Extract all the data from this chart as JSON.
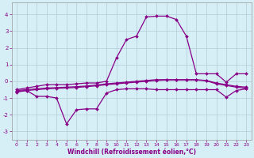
{
  "xlabel": "Windchill (Refroidissement éolien,°C)",
  "bg_color": "#d6eef5",
  "grid_color": "#b0ccd8",
  "line_color": "#880088",
  "xlim": [
    -0.5,
    23.5
  ],
  "ylim": [
    -3.5,
    4.7
  ],
  "yticks": [
    -3,
    -2,
    -1,
    0,
    1,
    2,
    3,
    4
  ],
  "xticks": [
    0,
    1,
    2,
    3,
    4,
    5,
    6,
    7,
    8,
    9,
    10,
    11,
    12,
    13,
    14,
    15,
    16,
    17,
    18,
    19,
    20,
    21,
    22,
    23
  ],
  "line_high_x": [
    0,
    1,
    2,
    3,
    4,
    5,
    6,
    7,
    8,
    9,
    10,
    11,
    12,
    13,
    14,
    15,
    16,
    17,
    18,
    19,
    20,
    21,
    22,
    23
  ],
  "line_high_y": [
    -0.5,
    -0.4,
    -0.3,
    -0.2,
    -0.2,
    -0.2,
    -0.15,
    -0.1,
    -0.1,
    0.0,
    1.4,
    2.5,
    2.7,
    3.85,
    3.9,
    3.9,
    3.7,
    2.7,
    0.45,
    0.45,
    0.45,
    -0.05,
    0.45,
    0.45
  ],
  "line_mid1_x": [
    0,
    1,
    2,
    3,
    4,
    5,
    6,
    7,
    8,
    9,
    10,
    11,
    12,
    13,
    14,
    15,
    16,
    17,
    18,
    19,
    20,
    21,
    22,
    23
  ],
  "line_mid1_y": [
    -0.55,
    -0.5,
    -0.45,
    -0.4,
    -0.38,
    -0.35,
    -0.32,
    -0.28,
    -0.22,
    -0.15,
    -0.1,
    -0.05,
    0.0,
    0.05,
    0.1,
    0.1,
    0.1,
    0.1,
    0.1,
    0.05,
    -0.1,
    -0.2,
    -0.3,
    -0.35
  ],
  "line_mid2_x": [
    0,
    1,
    2,
    3,
    4,
    5,
    6,
    7,
    8,
    9,
    10,
    11,
    12,
    13,
    14,
    15,
    16,
    17,
    18,
    19,
    20,
    21,
    22,
    23
  ],
  "line_mid2_y": [
    -0.65,
    -0.55,
    -0.5,
    -0.45,
    -0.42,
    -0.4,
    -0.37,
    -0.32,
    -0.27,
    -0.2,
    -0.15,
    -0.1,
    -0.05,
    0.0,
    0.05,
    0.08,
    0.08,
    0.08,
    0.08,
    0.03,
    -0.15,
    -0.25,
    -0.35,
    -0.42
  ],
  "line_low_x": [
    0,
    1,
    2,
    3,
    4,
    5,
    6,
    7,
    8,
    9,
    10,
    11,
    12,
    13,
    14,
    15,
    16,
    17,
    18,
    19,
    20,
    21,
    22,
    23
  ],
  "line_low_y": [
    -0.6,
    -0.55,
    -0.9,
    -0.9,
    -1.0,
    -2.55,
    -1.7,
    -1.65,
    -1.65,
    -0.7,
    -0.5,
    -0.45,
    -0.45,
    -0.45,
    -0.5,
    -0.5,
    -0.5,
    -0.5,
    -0.5,
    -0.5,
    -0.5,
    -0.95,
    -0.55,
    -0.45
  ]
}
